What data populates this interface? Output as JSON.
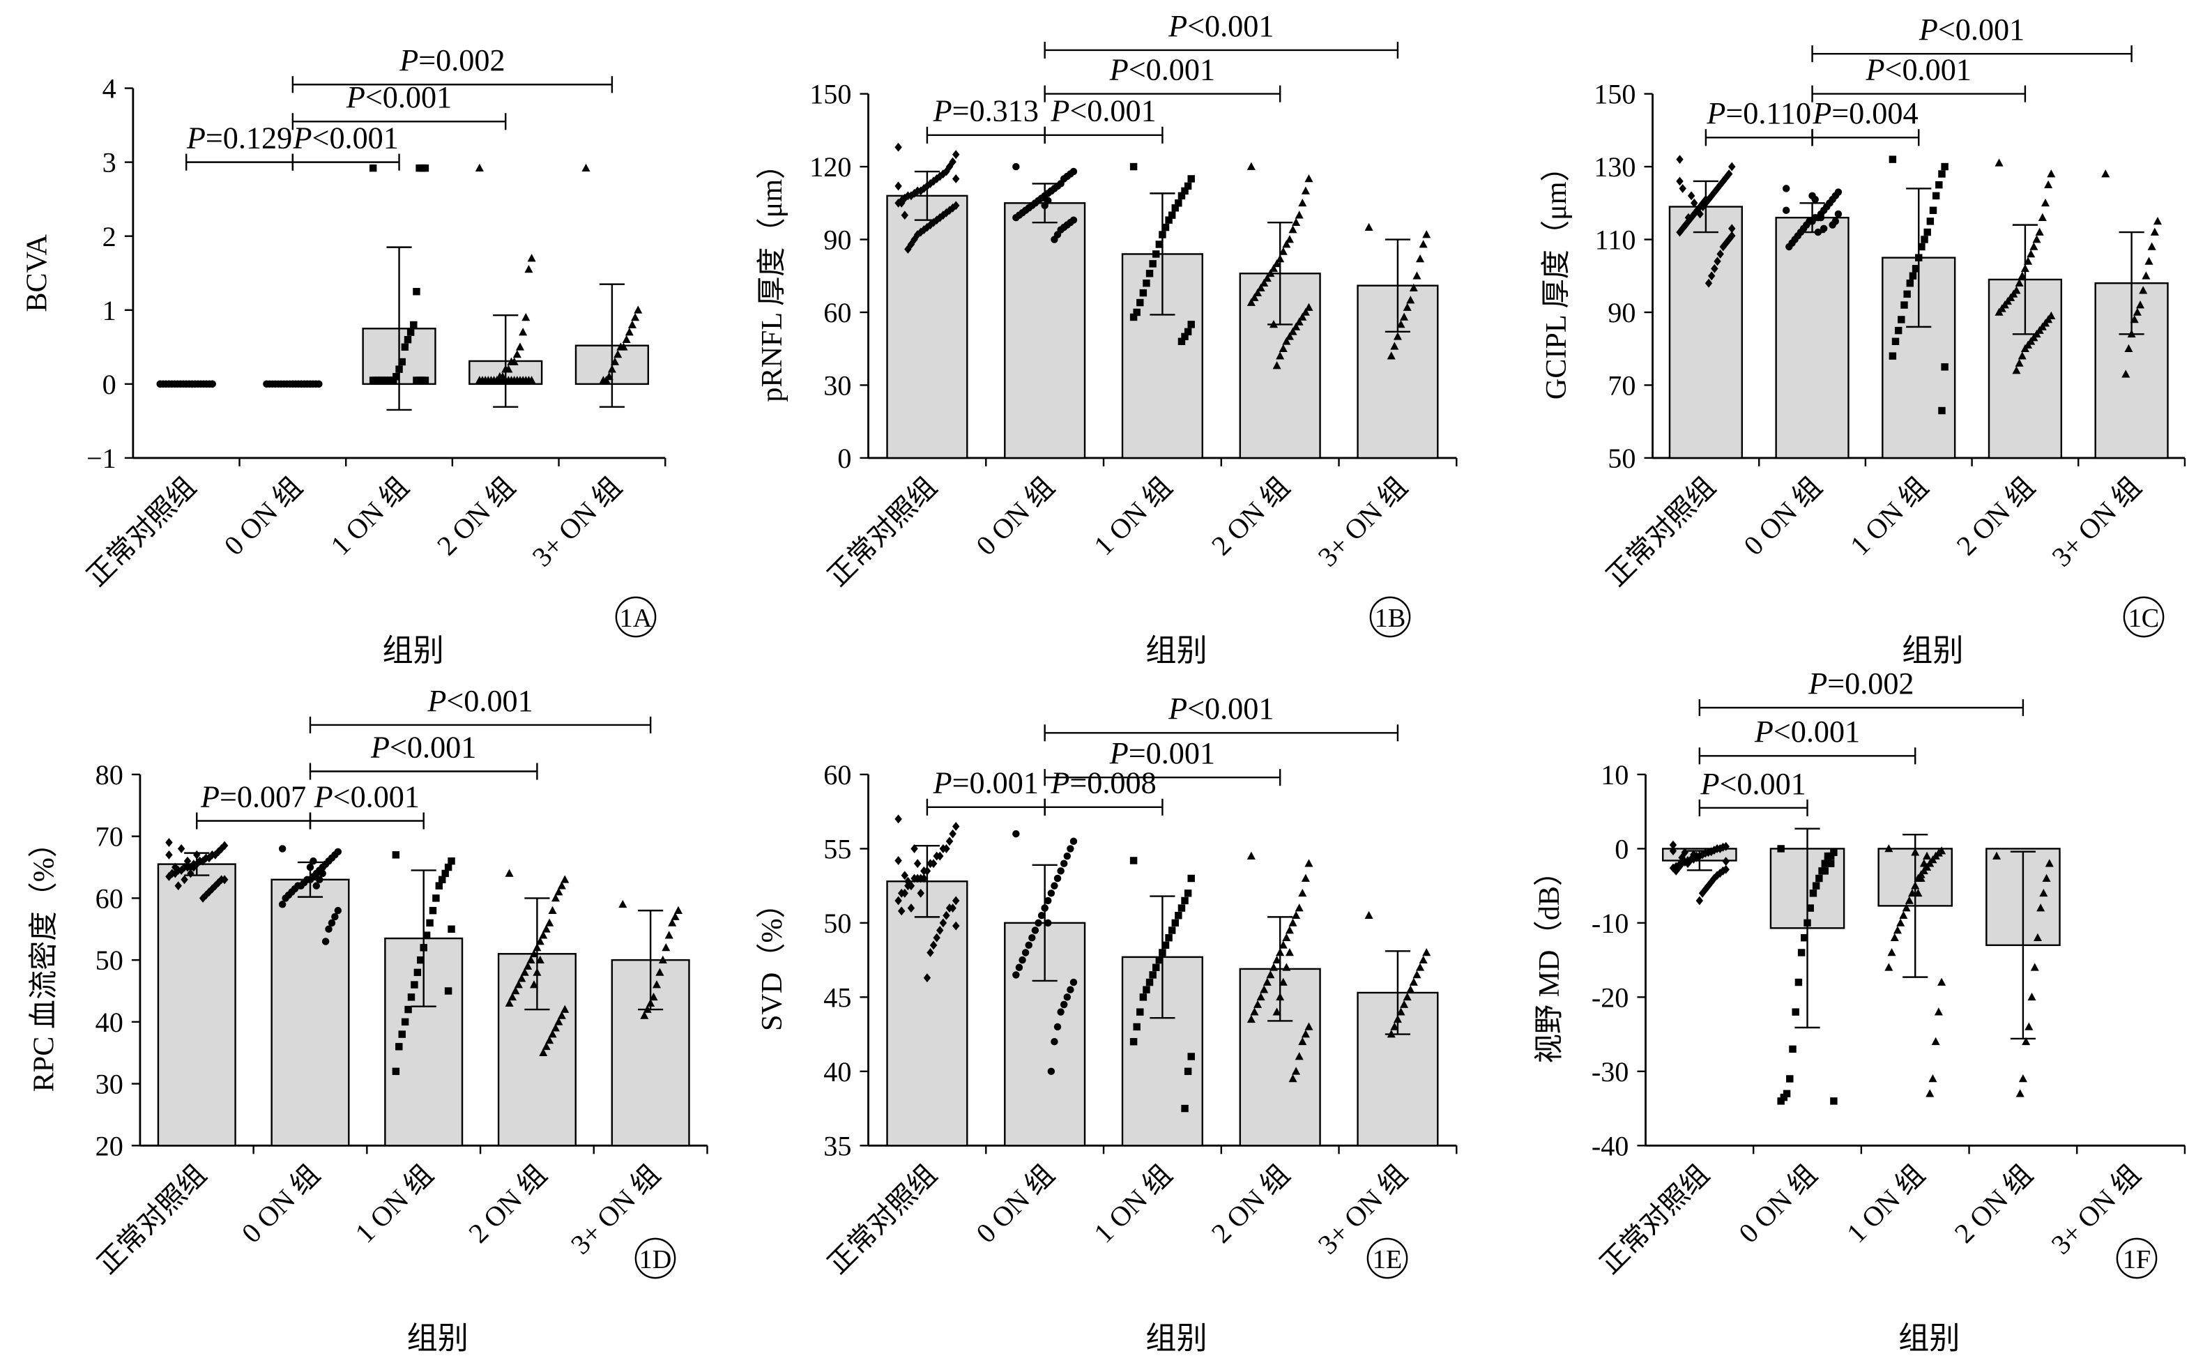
{
  "xlabel": "组别",
  "categories": [
    "正常对照组",
    "0 ON 组",
    "1 ON 组",
    "2 ON 组",
    "3+ ON 组"
  ],
  "colors": {
    "bar_fill": "#d9d9d9",
    "stroke": "#000000"
  },
  "chart_data": [
    {
      "panel": "1A",
      "type": "bar",
      "ylabel": "BCVA",
      "ylim": [
        -1,
        4
      ],
      "yticks": [
        -1,
        0,
        1,
        2,
        3,
        4
      ],
      "ytick_labels": [
        "−1",
        "0",
        "1",
        "2",
        "3",
        "4"
      ],
      "values": [
        0.0,
        0.0,
        0.75,
        0.31,
        0.52
      ],
      "sd": [
        0.0,
        0.0,
        1.1,
        0.62,
        0.83
      ],
      "marker": [
        "circle",
        "circle",
        "square",
        "triangle",
        "triangle"
      ],
      "points": [
        [
          0,
          0,
          0,
          0,
          0,
          0,
          0,
          0,
          0,
          0,
          0,
          0,
          0,
          0,
          0,
          0,
          0,
          0,
          0,
          0,
          0,
          0,
          0,
          0,
          0,
          0,
          0,
          0,
          0,
          0,
          0,
          0,
          0,
          0,
          0,
          0,
          0,
          0,
          0,
          0
        ],
        [
          0,
          0,
          0,
          0,
          0,
          0,
          0,
          0,
          0,
          0,
          0,
          0,
          0,
          0,
          0,
          0,
          0,
          0,
          0,
          0,
          0,
          0,
          0,
          0,
          0,
          0,
          0,
          0,
          0,
          0
        ],
        [
          2.92,
          2.92,
          2.92,
          2.92,
          1.25,
          0.8,
          0.7,
          0.6,
          0.5,
          0.3,
          0.2,
          0.1,
          0.05,
          0.05,
          0.05,
          0.05,
          0.05,
          0.05,
          0.05,
          0.05,
          0.05,
          0.05,
          0.05,
          0.05
        ],
        [
          2.92,
          1.7,
          1.55,
          0.9,
          0.7,
          0.5,
          0.4,
          0.3,
          0.3,
          0.2,
          0.2,
          0.1,
          0.1,
          0.05,
          0.05,
          0.05,
          0.05,
          0.05,
          0.05,
          0.05,
          0.05,
          0.05,
          0.05,
          0.05,
          0.05,
          0.05,
          0.05,
          0.05,
          0.05,
          0.05,
          0.05,
          0.05
        ],
        [
          2.92,
          1.0,
          0.9,
          0.8,
          0.7,
          0.6,
          0.5,
          0.5,
          0.4,
          0.3,
          0.2,
          0.1,
          0.05,
          0.05
        ]
      ],
      "comparisons": [
        {
          "from": 0,
          "to": 1,
          "y": 3.0,
          "label": "P=0.129"
        },
        {
          "from": 1,
          "to": 2,
          "y": 3.0,
          "label": "P<0.001"
        },
        {
          "from": 1,
          "to": 3,
          "y": 3.55,
          "label": "P<0.001"
        },
        {
          "from": 1,
          "to": 4,
          "y": 4.05,
          "label": "P=0.002"
        }
      ]
    },
    {
      "panel": "1B",
      "type": "bar",
      "ylabel": "pRNFL 厚度（μm）",
      "ylim": [
        0,
        150
      ],
      "yticks": [
        0,
        30,
        60,
        90,
        120,
        150
      ],
      "ytick_labels": [
        "0",
        "30",
        "60",
        "90",
        "120",
        "150"
      ],
      "values": [
        108,
        105,
        84,
        76,
        71
      ],
      "sd": [
        10,
        8,
        25,
        21,
        19
      ],
      "marker": [
        "diamond",
        "circle",
        "square",
        "triangle",
        "triangle"
      ],
      "points": [
        [
          128,
          125,
          122,
          120,
          118,
          117,
          116,
          115,
          114,
          113,
          112,
          111,
          110,
          110,
          109,
          108,
          108,
          107,
          106,
          105,
          104,
          103,
          102,
          101,
          100,
          99,
          98,
          97,
          96,
          95,
          94,
          93,
          92,
          90,
          88,
          86,
          100,
          105,
          112,
          115
        ],
        [
          120,
          118,
          117,
          116,
          115,
          113,
          112,
          111,
          110,
          109,
          108,
          107,
          106,
          105,
          104,
          103,
          102,
          101,
          100,
          99,
          98,
          97,
          96,
          95,
          94,
          92,
          90,
          110,
          106,
          104
        ],
        [
          120,
          115,
          112,
          110,
          108,
          105,
          103,
          100,
          98,
          95,
          92,
          88,
          84,
          80,
          76,
          72,
          68,
          64,
          60,
          58,
          55,
          52,
          50,
          48
        ],
        [
          120,
          115,
          110,
          105,
          100,
          97,
          94,
          90,
          88,
          85,
          82,
          80,
          78,
          76,
          74,
          72,
          70,
          68,
          66,
          64,
          62,
          60,
          58,
          56,
          54,
          52,
          50,
          48,
          45,
          42,
          38,
          55
        ],
        [
          95,
          92,
          88,
          82,
          75,
          70,
          65,
          62,
          58,
          55,
          50,
          46,
          42
        ]
      ],
      "comparisons": [
        {
          "from": 0,
          "to": 1,
          "y": 133,
          "label": "P=0.313"
        },
        {
          "from": 1,
          "to": 2,
          "y": 133,
          "label": "P<0.001"
        },
        {
          "from": 1,
          "to": 3,
          "y": 150,
          "label": "P<0.001"
        },
        {
          "from": 1,
          "to": 4,
          "y": 168,
          "label": "P<0.001"
        }
      ]
    },
    {
      "panel": "1C",
      "type": "bar",
      "ylabel": "GCIPL 厚度（μm）",
      "ylim": [
        50,
        150
      ],
      "yticks": [
        50,
        70,
        90,
        110,
        130,
        150
      ],
      "ytick_labels": [
        "50",
        "70",
        "90",
        "110",
        "130",
        "150"
      ],
      "values": [
        119,
        116,
        105,
        99,
        98
      ],
      "sd": [
        7,
        4,
        19,
        15,
        14
      ],
      "marker": [
        "diamond",
        "circle",
        "square",
        "triangle",
        "triangle"
      ],
      "points": [
        [
          132,
          130,
          128,
          127,
          126,
          125,
          124,
          123,
          122,
          121,
          120,
          120,
          119,
          118,
          117,
          116,
          115,
          114,
          113,
          112,
          111,
          110,
          109,
          108,
          106,
          104,
          102,
          100,
          98,
          121,
          119,
          117,
          118,
          120,
          122,
          116,
          114,
          124,
          126,
          113
        ],
        [
          124,
          123,
          122,
          121,
          120,
          119,
          118,
          117,
          116,
          116,
          115,
          115,
          114,
          113,
          112,
          111,
          110,
          109,
          108,
          118,
          117,
          115,
          114,
          120,
          119,
          113,
          116,
          112,
          121,
          122
        ],
        [
          132,
          130,
          128,
          125,
          122,
          118,
          115,
          112,
          110,
          108,
          105,
          102,
          100,
          98,
          95,
          92,
          88,
          85,
          82,
          78,
          75,
          63
        ],
        [
          131,
          128,
          125,
          120,
          116,
          112,
          110,
          108,
          106,
          104,
          102,
          100,
          98,
          96,
          95,
          94,
          93,
          92,
          91,
          90,
          89,
          88,
          87,
          86,
          85,
          84,
          83,
          82,
          81,
          80,
          78,
          76,
          74
        ],
        [
          128,
          115,
          112,
          108,
          104,
          100,
          96,
          92,
          90,
          88,
          84,
          80,
          73
        ]
      ],
      "comparisons": [
        {
          "from": 0,
          "to": 1,
          "y": 138,
          "label": "P=0.110"
        },
        {
          "from": 1,
          "to": 2,
          "y": 138,
          "label": "P=0.004"
        },
        {
          "from": 1,
          "to": 3,
          "y": 150,
          "label": "P<0.001"
        },
        {
          "from": 1,
          "to": 4,
          "y": 161,
          "label": "P<0.001"
        }
      ]
    },
    {
      "panel": "1D",
      "type": "bar",
      "ylabel": "RPC 血流密度（%）",
      "ylim": [
        20,
        80
      ],
      "yticks": [
        20,
        30,
        40,
        50,
        60,
        70,
        80
      ],
      "ytick_labels": [
        "20",
        "30",
        "40",
        "50",
        "60",
        "70",
        "80"
      ],
      "values": [
        65.5,
        63,
        53.5,
        51,
        50
      ],
      "sd": [
        1.8,
        2.8,
        11,
        9,
        8
      ],
      "marker": [
        "diamond",
        "circle",
        "square",
        "triangle",
        "triangle"
      ],
      "points": [
        [
          69,
          68.5,
          68,
          67.5,
          67,
          67,
          66.5,
          66.5,
          66,
          66,
          65.5,
          65.5,
          65,
          65,
          65,
          64.5,
          64.5,
          64,
          64,
          63.5,
          63,
          63,
          62.5,
          62,
          61.5,
          61,
          60.5,
          60,
          66,
          67,
          65,
          64,
          66,
          63,
          68,
          62,
          65,
          64,
          67,
          63
        ],
        [
          68,
          67.5,
          67,
          66.5,
          66,
          65.5,
          65,
          64.5,
          64,
          63.5,
          63,
          63,
          62.5,
          62,
          62,
          61.5,
          61,
          60.5,
          60,
          59,
          58,
          57,
          56,
          55,
          53,
          64,
          63,
          62,
          66,
          65
        ],
        [
          67,
          66,
          65,
          64,
          63,
          62,
          60,
          58,
          56,
          54,
          52,
          50,
          48,
          46,
          44,
          42,
          40,
          38,
          36,
          32,
          55,
          45
        ],
        [
          64,
          63,
          62,
          61,
          60,
          58,
          56,
          55,
          54,
          53,
          52,
          51,
          50,
          49,
          48,
          47,
          46,
          45,
          44,
          43,
          42,
          41,
          40,
          39,
          38,
          37,
          36,
          35,
          50,
          48,
          46
        ],
        [
          59,
          58,
          57,
          56,
          54,
          52,
          50,
          48,
          46,
          44,
          43,
          42,
          41
        ]
      ],
      "comparisons": [
        {
          "from": 0,
          "to": 1,
          "y": 72.5,
          "label": "P=0.007"
        },
        {
          "from": 1,
          "to": 2,
          "y": 72.5,
          "label": "P<0.001"
        },
        {
          "from": 1,
          "to": 3,
          "y": 80.5,
          "label": "P<0.001"
        },
        {
          "from": 1,
          "to": 4,
          "y": 88,
          "label": "P<0.001"
        }
      ]
    },
    {
      "panel": "1E",
      "type": "bar",
      "ylabel": "SVD（%）",
      "ylim": [
        35,
        60
      ],
      "yticks": [
        35,
        40,
        45,
        50,
        55,
        60
      ],
      "ytick_labels": [
        "35",
        "40",
        "45",
        "50",
        "55",
        "60"
      ],
      "values": [
        52.8,
        50,
        47.7,
        46.9,
        45.3
      ],
      "sd": [
        2.4,
        3.9,
        4.1,
        3.5,
        2.8
      ],
      "marker": [
        "diamond",
        "circle",
        "square",
        "triangle",
        "triangle"
      ],
      "points": [
        [
          57,
          56.5,
          56,
          55.5,
          55,
          55,
          54.5,
          54.5,
          54,
          54,
          53.5,
          53.5,
          53,
          53,
          53,
          52.5,
          52.5,
          52,
          52,
          51.5,
          51.5,
          51,
          51,
          50.5,
          50,
          49.5,
          49,
          48.5,
          48,
          46.3,
          53,
          52,
          54,
          55,
          51,
          52.8,
          53.2,
          50.8,
          54.2,
          49.8
        ],
        [
          56,
          55.5,
          55,
          54.5,
          54,
          53.5,
          53,
          52.5,
          52,
          51.5,
          51,
          50.5,
          50,
          49.5,
          49,
          48.5,
          48,
          47.5,
          47,
          46.5,
          46,
          45.5,
          45,
          44.5,
          44,
          43,
          42,
          40,
          50,
          51
        ],
        [
          54.2,
          53,
          52,
          51.5,
          51,
          50.5,
          50,
          49.5,
          49,
          48.5,
          48,
          47.5,
          47,
          46.5,
          46,
          45.5,
          45,
          44,
          43,
          42,
          41,
          40,
          37.5
        ],
        [
          54.5,
          54,
          53,
          52,
          51,
          50.5,
          50,
          49.5,
          49,
          48.5,
          48,
          47.5,
          47,
          46.5,
          46,
          45.5,
          45,
          44.5,
          44,
          43.5,
          43,
          42.5,
          42,
          41,
          40,
          39.5,
          48,
          47,
          46,
          45,
          44
        ],
        [
          50.5,
          48,
          47.5,
          47,
          46.5,
          46,
          45.5,
          45,
          44.5,
          44,
          43.5,
          43,
          42.5
        ]
      ],
      "comparisons": [
        {
          "from": 0,
          "to": 1,
          "y": 57.8,
          "label": "P=0.001"
        },
        {
          "from": 1,
          "to": 2,
          "y": 57.8,
          "label": "P=0.008"
        },
        {
          "from": 1,
          "to": 3,
          "y": 59.8,
          "label": "P=0.001"
        },
        {
          "from": 1,
          "to": 4,
          "y": 62.8,
          "label": "P<0.001"
        }
      ]
    },
    {
      "panel": "1F",
      "type": "bar",
      "ylabel": "视野 MD（dB）",
      "ylim": [
        -40,
        10
      ],
      "yticks": [
        -40,
        -30,
        -20,
        -10,
        0,
        10
      ],
      "ytick_labels": [
        "-40",
        "-30",
        "-20",
        "-10",
        "0",
        "10"
      ],
      "values": [
        -1.6,
        -10.7,
        -7.7,
        -13.0,
        null
      ],
      "sd": [
        1.3,
        13.4,
        9.6,
        12.6,
        null
      ],
      "marker": [
        "diamond",
        "square",
        "triangle",
        "triangle",
        null
      ],
      "points": [
        [
          0.5,
          0.3,
          0.2,
          0,
          0,
          -0.2,
          -0.4,
          -0.5,
          -0.6,
          -0.8,
          -1,
          -1.2,
          -1.4,
          -1.5,
          -1.6,
          -1.8,
          -2,
          -2.2,
          -2.4,
          -2.6,
          -2.8,
          -3,
          -3.3,
          -3.6,
          -4,
          -4.5,
          -5,
          -5.5,
          -6,
          -7,
          -1,
          -0.8,
          -1.5,
          -2,
          -0.5,
          -1.2,
          -2.5,
          -3,
          -0.3,
          -1.7
        ],
        [
          0,
          -0.5,
          -1,
          -1.5,
          -2,
          -3,
          -4,
          -5,
          -6,
          -8,
          -10,
          -12,
          -14,
          -18,
          -22,
          -27,
          -31,
          -33,
          -33.5,
          -34,
          -34,
          -2,
          -1,
          -3
        ],
        [
          0,
          -0.3,
          -0.6,
          -1,
          -1.5,
          -2,
          -2.5,
          -3,
          -3.5,
          -4,
          -5,
          -6,
          -7,
          -8,
          -9,
          -10,
          -11,
          -12,
          -14,
          -16,
          -18,
          -22,
          -26,
          -31,
          -33,
          -1,
          -2,
          -4,
          -6,
          -0.5
        ],
        [
          -1,
          -2,
          -4,
          -6,
          -8,
          -12,
          -16,
          -20,
          -24,
          -26,
          -31,
          -33
        ],
        []
      ],
      "comparisons": [
        {
          "from": 0,
          "to": 1,
          "y": 5.5,
          "label": "P<0.001"
        },
        {
          "from": 0,
          "to": 2,
          "y": 12.5,
          "label": "P<0.001"
        },
        {
          "from": 0,
          "to": 3,
          "y": 19,
          "label": "P=0.002"
        }
      ]
    }
  ]
}
